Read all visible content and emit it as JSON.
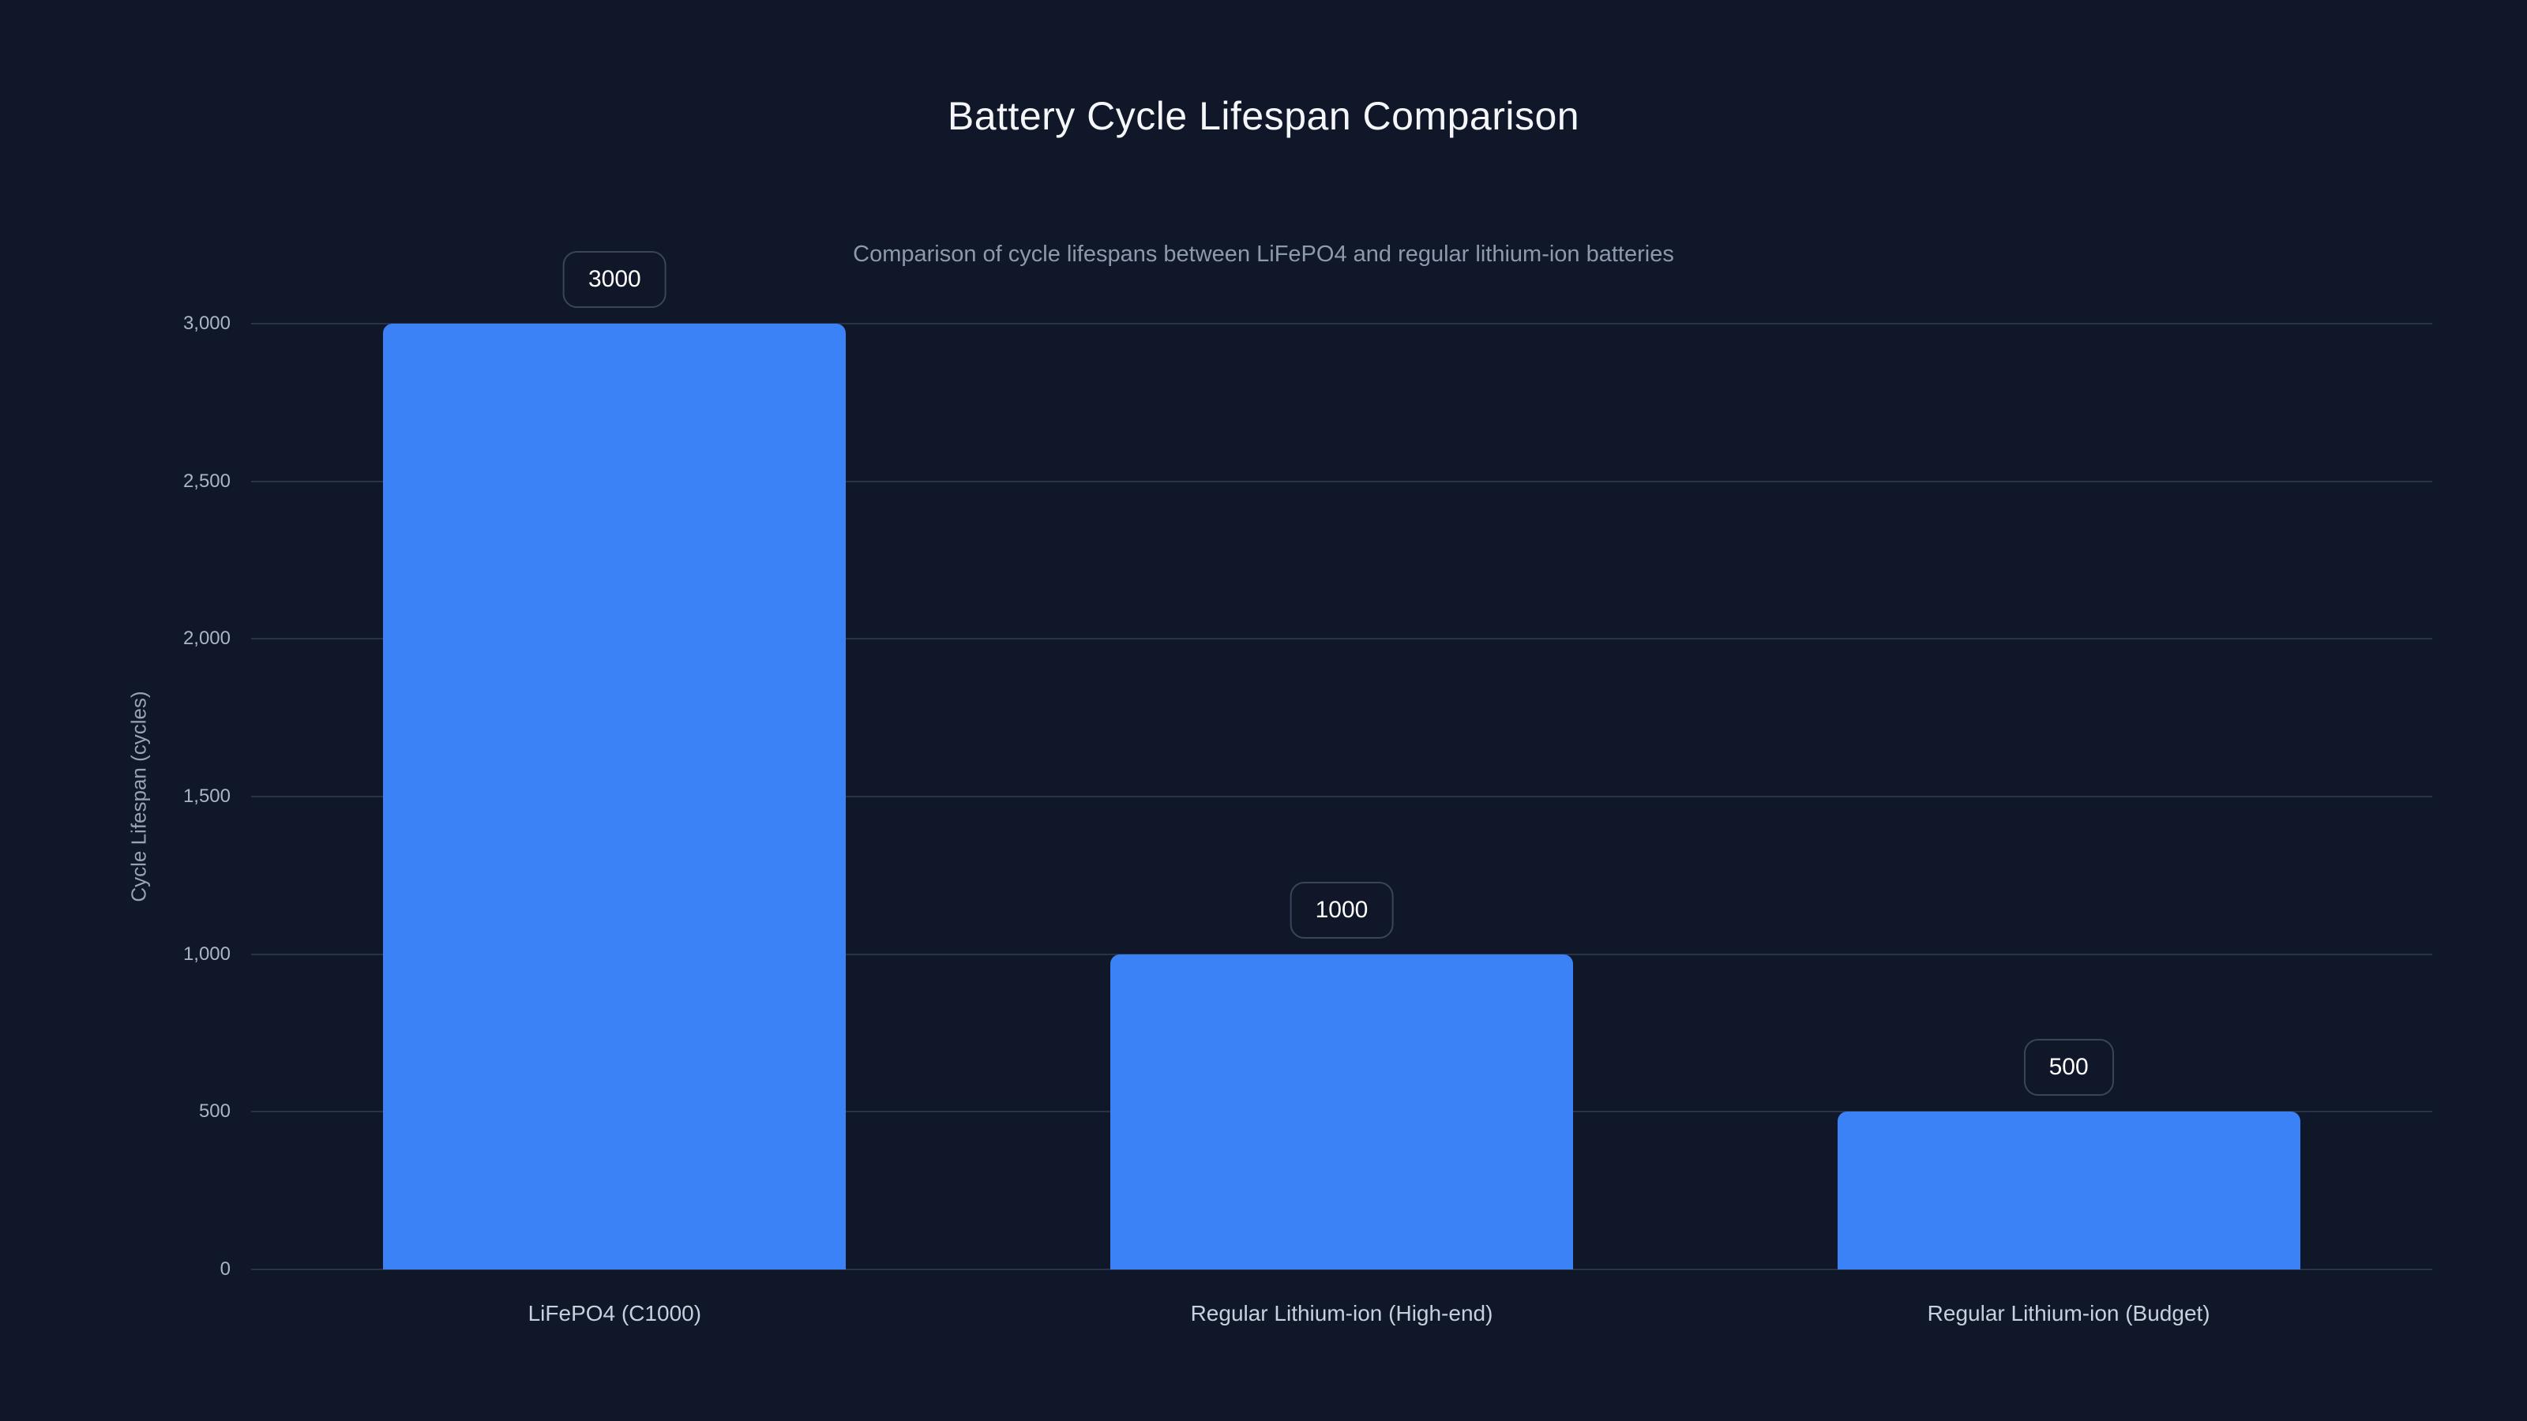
{
  "header": {
    "title": "Battery Cycle Lifespan Comparison",
    "subtitle": "Comparison of cycle lifespans between LiFePO4 and regular lithium-ion batteries"
  },
  "chart_data": {
    "type": "bar",
    "title": "Battery Cycle Lifespan Comparison",
    "subtitle": "Comparison of cycle lifespans between LiFePO4 and regular lithium-ion batteries",
    "categories": [
      "LiFePO4 (C1000)",
      "Regular Lithium-ion (High-end)",
      "Regular Lithium-ion (Budget)"
    ],
    "values": [
      3000,
      1000,
      500
    ],
    "bar_value_labels": [
      "3000",
      "1000",
      "500"
    ],
    "xlabel": "",
    "ylabel": "Cycle Lifespan (cycles)",
    "ylim": [
      0,
      3000
    ],
    "yticks": [
      0,
      500,
      1000,
      1500,
      2000,
      2500,
      3000
    ],
    "ytick_labels": [
      "0",
      "500",
      "1,000",
      "1,500",
      "2,000",
      "2,500",
      "3,000"
    ],
    "grid": true,
    "legend": false
  },
  "colors": {
    "background": "#0f1729",
    "bar": "#3b82f6",
    "gridline": "#283349",
    "title": "#f4f6f9",
    "subtitle": "#8d99ad",
    "tick_label": "#a9b4c6",
    "category_label": "#c7d0dd",
    "axis_title": "#98a3b7",
    "badge_border": "#3a455b",
    "badge_text": "#ffffff"
  }
}
